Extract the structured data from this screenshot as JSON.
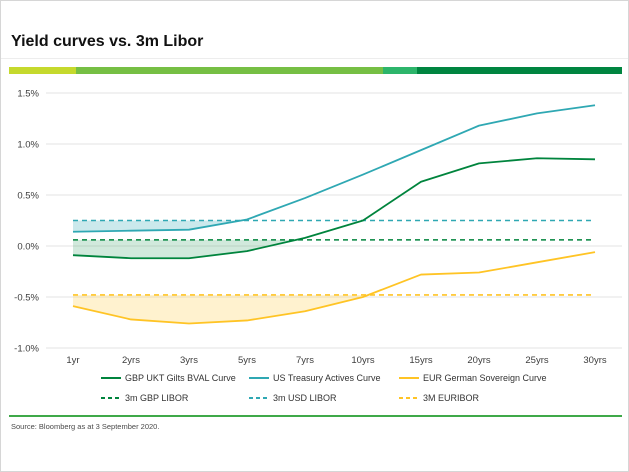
{
  "header": {
    "title": "Yield curves vs. 3m Libor"
  },
  "accent_bar": {
    "segments": [
      {
        "color": "#c5d92d",
        "width_pct": 11
      },
      {
        "color": "#76bf44",
        "width_pct": 50
      },
      {
        "color": "#2db56b",
        "width_pct": 5.5
      },
      {
        "color": "#008540",
        "width_pct": 33.5
      }
    ]
  },
  "footer": {
    "rule_color": "#3fa949",
    "source": "Source: Bloomberg as at 3 September 2020."
  },
  "chart_data": {
    "type": "line",
    "title": "Yield curves vs. 3m Libor",
    "categories": [
      "1yr",
      "2yrs",
      "3yrs",
      "5yrs",
      "7yrs",
      "10yrs",
      "15yrs",
      "20yrs",
      "25yrs",
      "30yrs"
    ],
    "y_ticks": [
      "1.5%",
      "1.0%",
      "0.5%",
      "0.0%",
      "-0.5%",
      "-1.0%"
    ],
    "y_tick_values": [
      1.5,
      1.0,
      0.5,
      0.0,
      -0.5,
      -1.0
    ],
    "ylim": [
      -1.0,
      1.5
    ],
    "grid": true,
    "legend_position": "bottom",
    "series": [
      {
        "name": "GBP UKT Gilts BVAL Curve",
        "color": "#00843d",
        "style": "solid",
        "fill_color": "rgba(0,132,61,0.18)",
        "values": [
          -0.09,
          -0.12,
          -0.12,
          -0.05,
          0.08,
          0.25,
          0.63,
          0.81,
          0.86,
          0.85
        ]
      },
      {
        "name": "US Treasury Actives Curve",
        "color": "#2fa8b3",
        "style": "solid",
        "fill_color": "rgba(47,168,179,0.25)",
        "values": [
          0.14,
          0.15,
          0.16,
          0.26,
          0.47,
          0.7,
          0.94,
          1.18,
          1.3,
          1.38
        ]
      },
      {
        "name": "EUR German Sovereign Curve",
        "color": "#ffc425",
        "style": "solid",
        "fill_color": "rgba(255,196,37,0.22)",
        "values": [
          -0.59,
          -0.72,
          -0.76,
          -0.73,
          -0.64,
          -0.5,
          -0.28,
          -0.26,
          -0.16,
          -0.06
        ]
      }
    ],
    "benchmarks": [
      {
        "name": "3m GBP LIBOR",
        "color": "#00843d",
        "style": "dashed",
        "value": 0.06
      },
      {
        "name": "3m USD LIBOR",
        "color": "#2fa8b3",
        "style": "dashed",
        "value": 0.25
      },
      {
        "name": "3M EURIBOR",
        "color": "#ffc425",
        "style": "dashed",
        "value": -0.48
      }
    ]
  }
}
